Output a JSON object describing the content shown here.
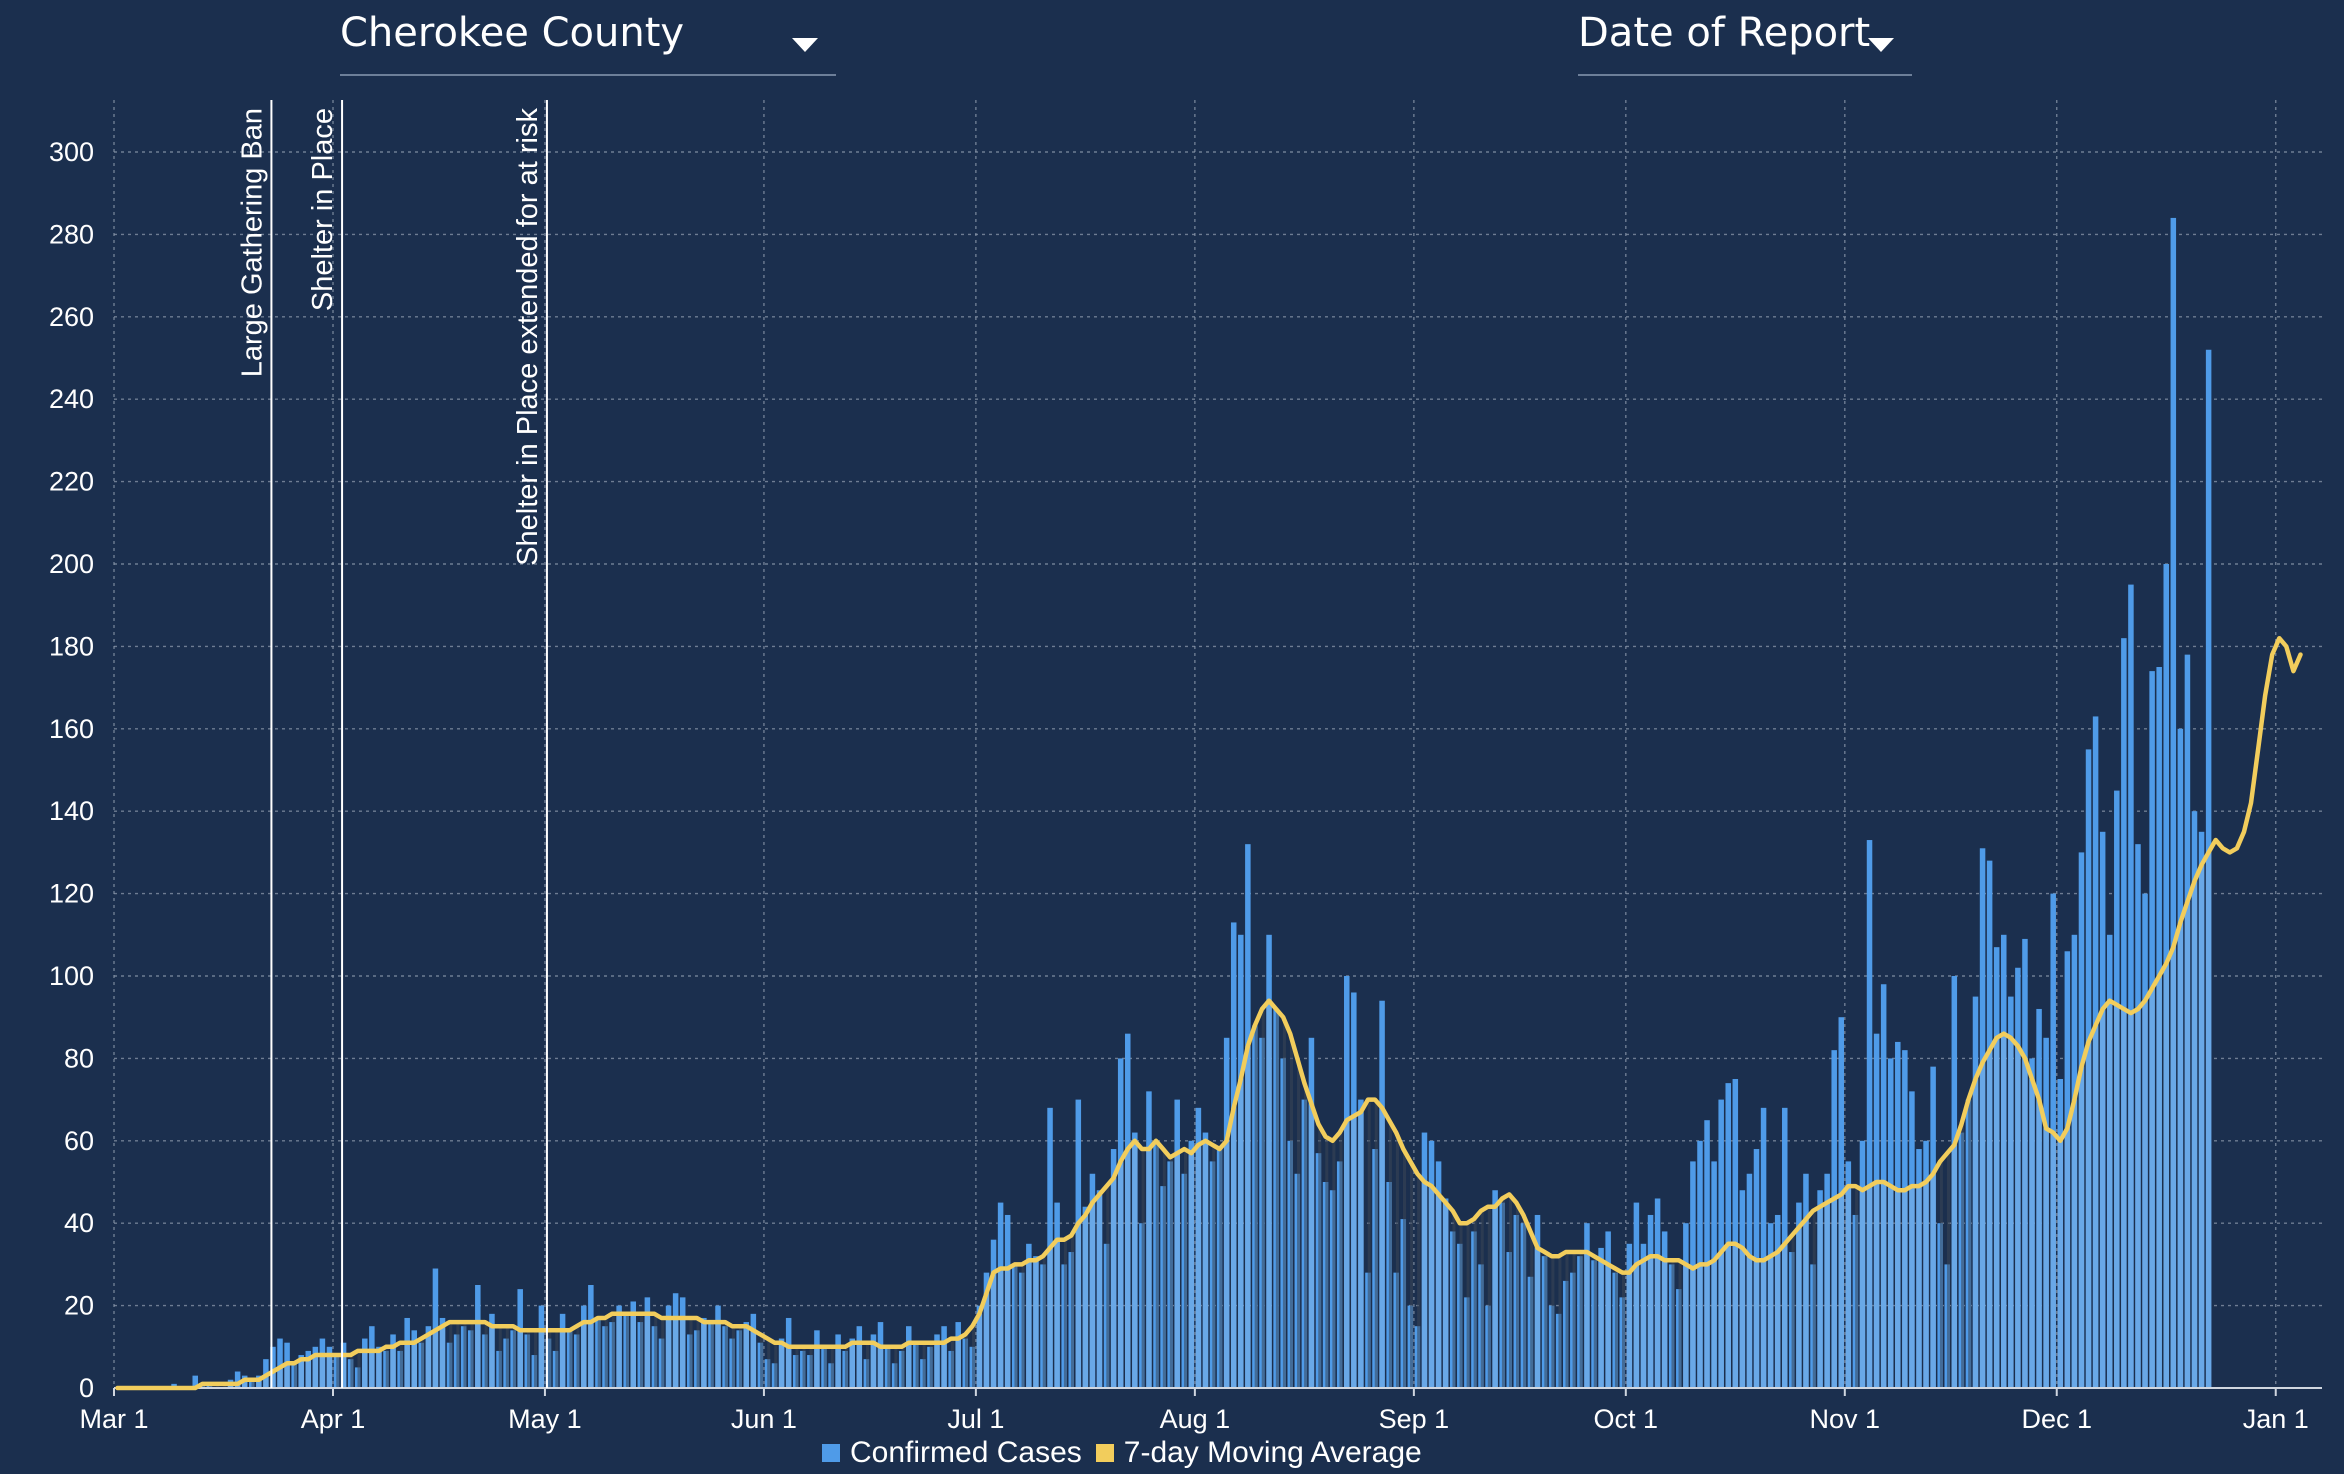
{
  "controls": {
    "county": "Cherokee County",
    "date_mode": "Date of Report"
  },
  "colors": {
    "background": "#1b2f4e",
    "bar": "#4f9be8",
    "bar_light": "#7fb3e6",
    "shadow": "#3a4656",
    "line": "#f2cd5c",
    "event_line": "#ffffff",
    "grid": "#8a97aa"
  },
  "chart_data": {
    "type": "bar",
    "title": "",
    "xlabel": "",
    "ylabel": "",
    "ylim": [
      0,
      310
    ],
    "yticks": [
      0,
      20,
      40,
      60,
      80,
      100,
      120,
      140,
      160,
      180,
      200,
      220,
      240,
      260,
      280,
      300
    ],
    "grid": true,
    "legend_position": "bottom-center",
    "start_date": "2020-03-01",
    "x_ticks": [
      {
        "label": "Mar 1",
        "day": 0
      },
      {
        "label": "Apr 1",
        "day": 31
      },
      {
        "label": "May 1",
        "day": 61
      },
      {
        "label": "Jun 1",
        "day": 92
      },
      {
        "label": "Jul 1",
        "day": 122
      },
      {
        "label": "Aug 1",
        "day": 153
      },
      {
        "label": "Sep 1",
        "day": 184
      },
      {
        "label": "Oct 1",
        "day": 214
      },
      {
        "label": "Nov 1",
        "day": 245
      },
      {
        "label": "Dec 1",
        "day": 275
      },
      {
        "label": "Jan 1",
        "day": 306
      }
    ],
    "events": [
      {
        "label": "Large Gathering Ban",
        "day": 22
      },
      {
        "label": "Shelter in Place",
        "day": 32
      },
      {
        "label": "Shelter in Place extended for at risk",
        "day": 61
      }
    ],
    "series": [
      {
        "name": "Confirmed Cases",
        "values": [
          0,
          0,
          0,
          0,
          0,
          0,
          0,
          0,
          1,
          0,
          0,
          3,
          1,
          1,
          0,
          0,
          2,
          4,
          3,
          2,
          3,
          7,
          10,
          12,
          11,
          6,
          8,
          9,
          10,
          12,
          10,
          8,
          11,
          7,
          5,
          12,
          15,
          10,
          9,
          13,
          9,
          17,
          14,
          11,
          15,
          29,
          17,
          11,
          13,
          15,
          14,
          25,
          13,
          18,
          9,
          12,
          14,
          24,
          13,
          8,
          20,
          12,
          9,
          18,
          14,
          13,
          20,
          25,
          17,
          15,
          16,
          20,
          18,
          21,
          16,
          22,
          15,
          12,
          20,
          23,
          22,
          13,
          14,
          17,
          16,
          20,
          15,
          12,
          14,
          16,
          18,
          11,
          7,
          6,
          12,
          17,
          8,
          9,
          8,
          14,
          10,
          6,
          13,
          9,
          12,
          15,
          7,
          13,
          16,
          10,
          6,
          9,
          15,
          11,
          7,
          10,
          13,
          15,
          9,
          16,
          12,
          10,
          20,
          28,
          36,
          45,
          42,
          30,
          28,
          35,
          32,
          30,
          68,
          45,
          30,
          33,
          70,
          44,
          52,
          48,
          35,
          58,
          80,
          86,
          62,
          40,
          72,
          60,
          49,
          55,
          70,
          52,
          60,
          68,
          62,
          55,
          58,
          85,
          113,
          110,
          132,
          88,
          85,
          110,
          92,
          80,
          60,
          52,
          70,
          85,
          57,
          50,
          48,
          55,
          100,
          96,
          70,
          28,
          58,
          94,
          50,
          28,
          41,
          20,
          15,
          62,
          60,
          55,
          46,
          38,
          35,
          22,
          38,
          30,
          20,
          48,
          45,
          33,
          42,
          40,
          27,
          42,
          32,
          20,
          18,
          26,
          28,
          32,
          40,
          31,
          34,
          38,
          28,
          22,
          35,
          45,
          35,
          42,
          46,
          38,
          30,
          24,
          40,
          55,
          60,
          65,
          55,
          70,
          74,
          75,
          48,
          52,
          58,
          68,
          40,
          42,
          68,
          33,
          45,
          52,
          30,
          48,
          52,
          82,
          90,
          55,
          42,
          60,
          133,
          86,
          98,
          80,
          84,
          82,
          72,
          58,
          60,
          78,
          40,
          30,
          100,
          62,
          70,
          95,
          131,
          128,
          107,
          110,
          95,
          102,
          109,
          80,
          92,
          85,
          120,
          75,
          106,
          110,
          130,
          155,
          163,
          135,
          110,
          145,
          182,
          195,
          132,
          120,
          174,
          175,
          200,
          284,
          160,
          178,
          140,
          135,
          252
        ],
        "color_key": "bar"
      },
      {
        "name": "7-day Moving Average",
        "values": [
          0,
          0,
          0,
          0,
          0,
          0,
          0,
          0,
          0,
          0,
          0,
          0,
          1,
          1,
          1,
          1,
          1,
          1,
          2,
          2,
          2,
          3,
          4,
          5,
          6,
          6,
          7,
          7,
          8,
          8,
          8,
          8,
          8,
          8,
          9,
          9,
          9,
          9,
          10,
          10,
          11,
          11,
          11,
          12,
          13,
          14,
          15,
          16,
          16,
          16,
          16,
          16,
          16,
          15,
          15,
          15,
          15,
          14,
          14,
          14,
          14,
          14,
          14,
          14,
          14,
          15,
          16,
          16,
          17,
          17,
          18,
          18,
          18,
          18,
          18,
          18,
          18,
          17,
          17,
          17,
          17,
          17,
          17,
          16,
          16,
          16,
          16,
          15,
          15,
          15,
          14,
          13,
          12,
          11,
          11,
          10,
          10,
          10,
          10,
          10,
          10,
          10,
          10,
          10,
          11,
          11,
          11,
          11,
          10,
          10,
          10,
          10,
          11,
          11,
          11,
          11,
          11,
          11,
          12,
          12,
          13,
          15,
          18,
          23,
          28,
          29,
          29,
          30,
          30,
          31,
          31,
          32,
          34,
          36,
          36,
          37,
          40,
          42,
          45,
          47,
          49,
          51,
          55,
          58,
          60,
          58,
          58,
          60,
          58,
          56,
          57,
          58,
          57,
          59,
          60,
          59,
          58,
          60,
          68,
          75,
          83,
          88,
          92,
          94,
          92,
          90,
          86,
          80,
          74,
          69,
          64,
          61,
          60,
          62,
          65,
          66,
          67,
          70,
          70,
          68,
          65,
          62,
          58,
          55,
          52,
          50,
          49,
          47,
          45,
          43,
          40,
          40,
          41,
          43,
          44,
          44,
          46,
          47,
          45,
          42,
          38,
          34,
          33,
          32,
          32,
          33,
          33,
          33,
          33,
          32,
          31,
          30,
          29,
          28,
          28,
          30,
          31,
          32,
          32,
          31,
          31,
          31,
          30,
          29,
          30,
          30,
          31,
          33,
          35,
          35,
          34,
          32,
          31,
          31,
          32,
          33,
          35,
          37,
          39,
          41,
          43,
          44,
          45,
          46,
          47,
          49,
          49,
          48,
          49,
          50,
          50,
          49,
          48,
          48,
          49,
          49,
          50,
          52,
          55,
          57,
          59,
          64,
          70,
          75,
          79,
          82,
          85,
          86,
          85,
          83,
          80,
          75,
          70,
          63,
          62,
          60,
          63,
          70,
          78,
          84,
          88,
          92,
          94,
          93,
          92,
          91,
          92,
          94,
          97,
          100,
          103,
          107,
          113,
          118,
          123,
          127,
          130,
          133,
          131,
          130,
          131,
          135,
          142,
          155,
          168,
          178,
          182,
          180,
          174,
          178
        ]
      }
    ]
  }
}
